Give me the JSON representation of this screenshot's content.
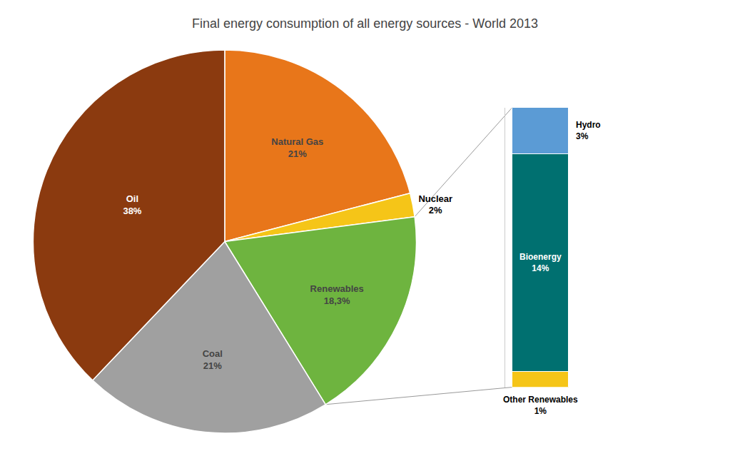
{
  "chart_data": [
    {
      "type": "pie",
      "title": "Final energy consumption of all energy sources - World 2013",
      "categories": [
        "Natural Gas",
        "Nuclear",
        "Renewables",
        "Coal",
        "Oil"
      ],
      "values": [
        21,
        2,
        18.3,
        21,
        38
      ],
      "value_labels": [
        "21%",
        "2%",
        "18,3%",
        "21%",
        "38%"
      ],
      "colors": [
        "#E8761A",
        "#F5C518",
        "#6EB43F",
        "#A0A0A0",
        "#8B3A0F"
      ],
      "data_labels": true
    },
    {
      "type": "bar",
      "stacked": true,
      "categories": [
        null
      ],
      "series": [
        {
          "name": "Other Renewables",
          "color": "#F5C518",
          "values": [
            1
          ],
          "value_labels": [
            "1%"
          ]
        },
        {
          "name": "Bioenergy",
          "color": "#007070",
          "values": [
            14
          ],
          "value_labels": [
            "14%"
          ]
        },
        {
          "name": "Hydro",
          "color": "#5B9BD5",
          "values": [
            3
          ],
          "value_labels": [
            "3%"
          ]
        }
      ],
      "ylim": [
        0,
        18
      ],
      "tick_labels": false,
      "data_labels": true
    }
  ]
}
